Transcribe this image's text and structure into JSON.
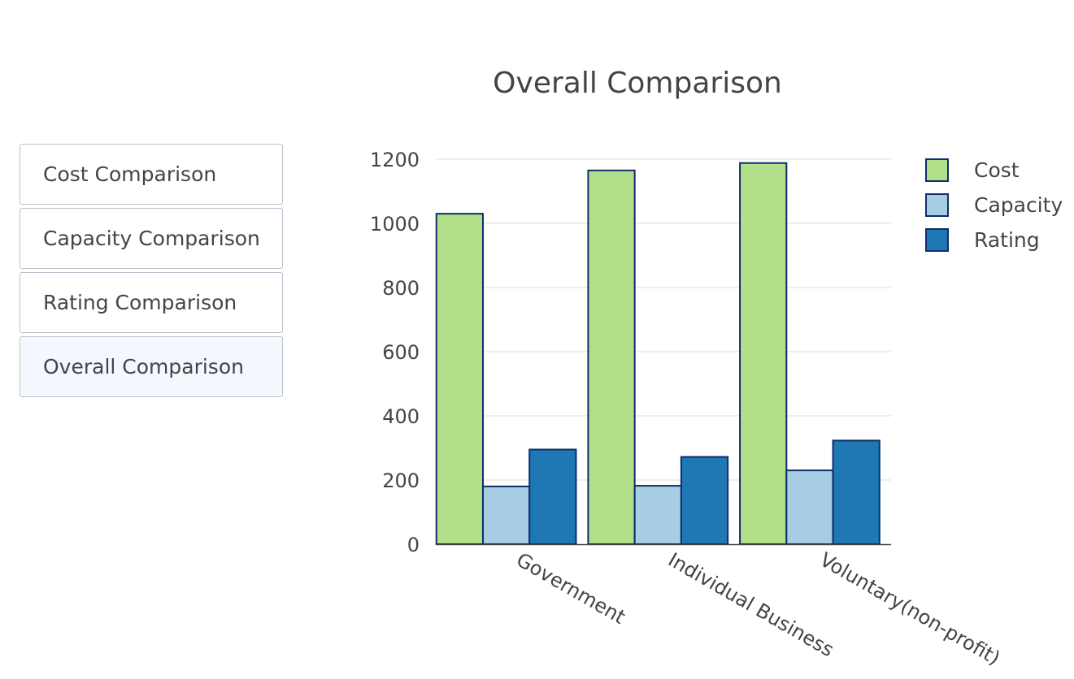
{
  "menu": {
    "items": [
      {
        "label": "Cost Comparison",
        "active": false
      },
      {
        "label": "Capacity Comparison",
        "active": false
      },
      {
        "label": "Rating Comparison",
        "active": false
      },
      {
        "label": "Overall Comparison",
        "active": true
      }
    ]
  },
  "colors": {
    "cost": "#b3df8a",
    "capacity": "#a6cde2",
    "rating": "#1f78b4",
    "outline": "#0d2d6b",
    "grid": "#e8e8e8",
    "text": "#444444"
  },
  "chart_data": {
    "type": "bar",
    "title": "Overall Comparison",
    "xlabel": "",
    "ylabel": "",
    "categories": [
      "Government",
      "Individual Business",
      "Voluntary(non-profit)"
    ],
    "series": [
      {
        "name": "Cost",
        "values": [
          1030,
          1165,
          1188
        ]
      },
      {
        "name": "Capacity",
        "values": [
          180,
          182,
          230
        ]
      },
      {
        "name": "Rating",
        "values": [
          295,
          272,
          323
        ]
      }
    ],
    "ylim": [
      0,
      1200
    ],
    "yticks": [
      0,
      200,
      400,
      600,
      800,
      1000,
      1200
    ],
    "grid": true,
    "legend": "top-right"
  }
}
